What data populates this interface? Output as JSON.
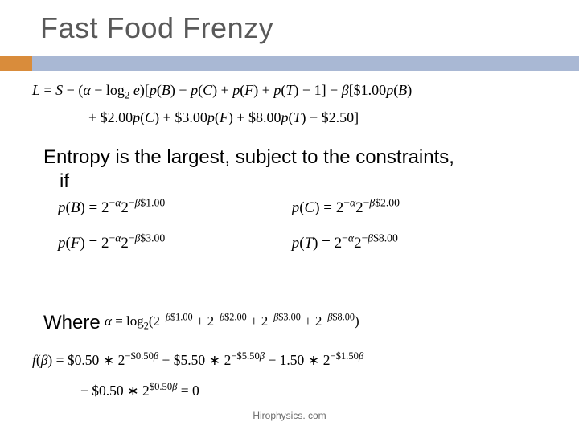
{
  "title": "Fast Food Frenzy",
  "accent": {
    "orange": "#d98c3b",
    "blue": "#a9b8d4"
  },
  "eq_L_line1": "L = S − (α − log₂ e)[p(B) + p(C) + p(F) + p(T) − 1] − β[$1.00p(B)",
  "eq_L_line2": "+ $2.00p(C) + $3.00p(F) + $8.00p(T) − $2.50]",
  "body_line1": "Entropy is the largest, subject to the constraints,",
  "body_line2": "if",
  "solutions": {
    "pB": {
      "lhs": "p(B) = 2",
      "exp": "−α",
      "mid": "2",
      "exp2": "−β$1.00"
    },
    "pC": {
      "lhs": "p(C) = 2",
      "exp": "−α",
      "mid": "2",
      "exp2": "−β$2.00"
    },
    "pF": {
      "lhs": "p(F) = 2",
      "exp": "−α",
      "mid": "2",
      "exp2": "−β$3.00"
    },
    "pT": {
      "lhs": "p(T) = 2",
      "exp": "−α",
      "mid": "2",
      "exp2": "−β$8.00"
    }
  },
  "where_label": "Where",
  "eq_alpha_line": "α = log₂(2⁻β$1.00 + 2⁻β$2.00 + 2⁻β$3.00 + 2⁻β$8.00)",
  "eq_f_line1": "f(β) = $0.50 ∗ 2⁻$0.50β + $5.50 ∗ 2⁻$5.50β − 1.50 ∗ 2⁻$1.50β",
  "eq_f_line2": "− $0.50 ∗ 2$0.50β = 0",
  "footer": "Hirophysics. com",
  "colors": {
    "title_text": "#595959",
    "body_text": "#000000",
    "background": "#ffffff",
    "footer_text": "#6a6a6a"
  },
  "fontsize": {
    "title": 36,
    "body": 24,
    "equation_main": 18,
    "equation_sol": 19,
    "equation_small": 17,
    "footer": 12
  }
}
